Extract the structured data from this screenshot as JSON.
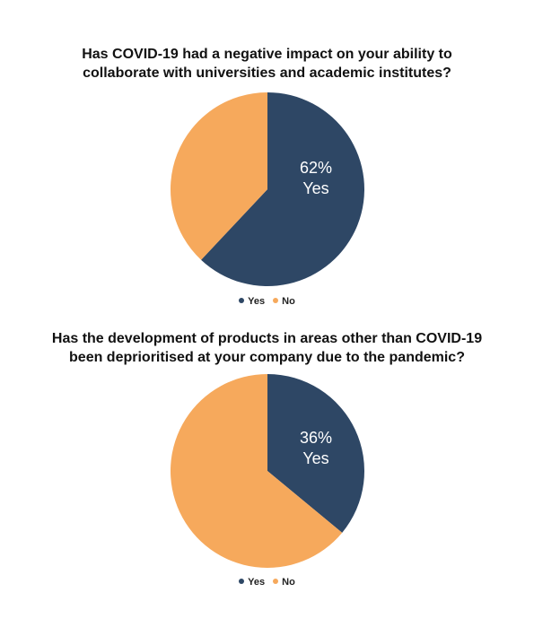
{
  "colors": {
    "yes": "#2e4765",
    "no": "#f6a95c"
  },
  "chart_data": [
    {
      "type": "pie",
      "title_lines": [
        "Has COVID-19 had a negative impact on your ability to",
        "collaborate with universities and academic institutes?"
      ],
      "categories": [
        "Yes",
        "No"
      ],
      "values": [
        62,
        38
      ],
      "slice_label": {
        "value": "62%",
        "category": "Yes"
      },
      "legend": [
        {
          "label": "Yes"
        },
        {
          "label": "No"
        }
      ],
      "legend_position": "bottom-center"
    },
    {
      "type": "pie",
      "title_lines": [
        "Has the development of products in areas other than COVID-19",
        "been deprioritised at your company due to the pandemic?"
      ],
      "categories": [
        "Yes",
        "No"
      ],
      "values": [
        36,
        64
      ],
      "slice_label": {
        "value": "36%",
        "category": "Yes"
      },
      "legend": [
        {
          "label": "Yes"
        },
        {
          "label": "No"
        }
      ],
      "legend_position": "bottom-center"
    }
  ]
}
